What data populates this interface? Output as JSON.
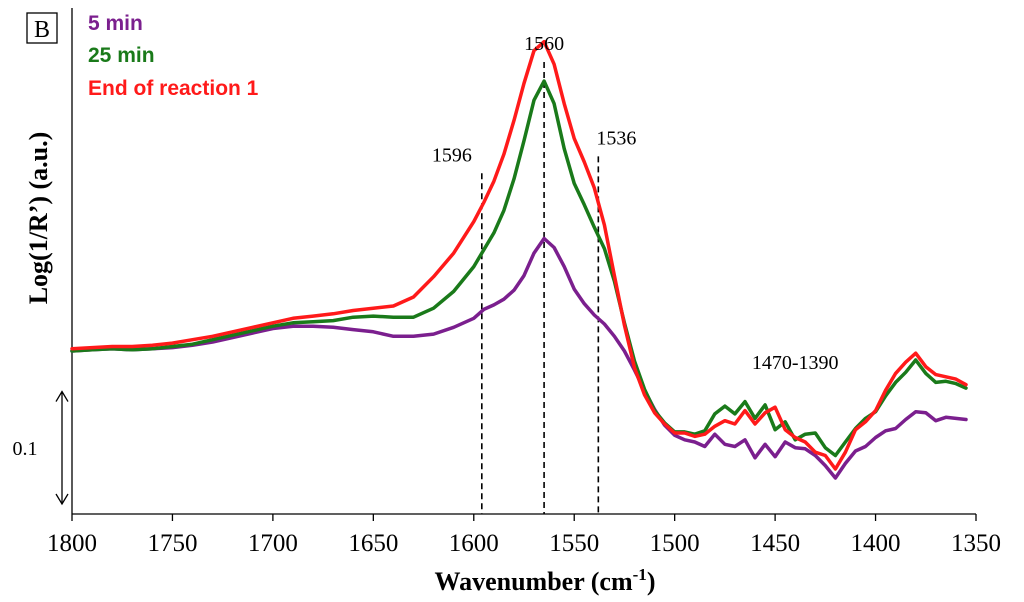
{
  "chart_data": {
    "type": "line",
    "panel_label": "B",
    "xlabel": "Wavenumber (cm",
    "xlabel_sup": "-1",
    "xlabel_close": ")",
    "ylabel": "Log(1/R’)  (a.u.)",
    "xlim": [
      1800,
      1350
    ],
    "x_reversed": true,
    "ylim": [
      0.0,
      0.45
    ],
    "x_ticks": [
      "1800",
      "1750",
      "1700",
      "1650",
      "1600",
      "1550",
      "1500",
      "1450",
      "1400",
      "1350"
    ],
    "grid": false,
    "legend_position": "top-left",
    "scale_bar": {
      "label": "0.1",
      "from": 0.0,
      "to": 0.1
    },
    "annotations": [
      {
        "text": "1596",
        "x": 1596,
        "y_top": 0.303
      },
      {
        "text": "1560",
        "x": 1565,
        "y_top": 0.402
      },
      {
        "text": "1536",
        "x": 1538,
        "y_top": 0.318
      },
      {
        "text": "1470-1390",
        "x": 1440,
        "y_text": 0.129
      }
    ],
    "series": [
      {
        "name": "5 min",
        "color": "#7B1F8E",
        "x": [
          1800,
          1790,
          1780,
          1770,
          1760,
          1750,
          1740,
          1730,
          1720,
          1710,
          1700,
          1690,
          1680,
          1670,
          1660,
          1650,
          1640,
          1630,
          1620,
          1610,
          1600,
          1595,
          1590,
          1585,
          1580,
          1575,
          1570,
          1565,
          1560,
          1555,
          1550,
          1545,
          1540,
          1535,
          1530,
          1525,
          1520,
          1515,
          1510,
          1505,
          1500,
          1495,
          1490,
          1485,
          1480,
          1475,
          1470,
          1465,
          1460,
          1455,
          1450,
          1445,
          1440,
          1435,
          1430,
          1425,
          1420,
          1415,
          1410,
          1405,
          1400,
          1395,
          1390,
          1385,
          1380,
          1375,
          1370,
          1365,
          1360,
          1355
        ],
        "y": [
          0.145,
          0.146,
          0.147,
          0.146,
          0.147,
          0.148,
          0.15,
          0.153,
          0.157,
          0.161,
          0.165,
          0.167,
          0.167,
          0.166,
          0.164,
          0.162,
          0.158,
          0.158,
          0.16,
          0.166,
          0.174,
          0.182,
          0.186,
          0.191,
          0.199,
          0.212,
          0.232,
          0.245,
          0.237,
          0.22,
          0.2,
          0.187,
          0.177,
          0.169,
          0.158,
          0.145,
          0.128,
          0.11,
          0.093,
          0.079,
          0.07,
          0.066,
          0.064,
          0.06,
          0.071,
          0.062,
          0.06,
          0.066,
          0.05,
          0.062,
          0.051,
          0.064,
          0.059,
          0.058,
          0.052,
          0.043,
          0.032,
          0.045,
          0.056,
          0.06,
          0.068,
          0.074,
          0.076,
          0.084,
          0.091,
          0.09,
          0.083,
          0.086,
          0.085,
          0.084
        ]
      },
      {
        "name": "25 min",
        "color": "#1A7A1A",
        "x": [
          1800,
          1790,
          1780,
          1770,
          1760,
          1750,
          1740,
          1730,
          1720,
          1710,
          1700,
          1690,
          1680,
          1670,
          1660,
          1650,
          1640,
          1630,
          1620,
          1610,
          1600,
          1595,
          1590,
          1585,
          1580,
          1575,
          1570,
          1565,
          1560,
          1555,
          1550,
          1545,
          1540,
          1535,
          1530,
          1525,
          1520,
          1515,
          1510,
          1505,
          1500,
          1495,
          1490,
          1485,
          1480,
          1475,
          1470,
          1465,
          1460,
          1455,
          1450,
          1445,
          1440,
          1435,
          1430,
          1425,
          1420,
          1415,
          1410,
          1405,
          1400,
          1395,
          1390,
          1385,
          1380,
          1375,
          1370,
          1365,
          1360,
          1355
        ],
        "y": [
          0.145,
          0.146,
          0.147,
          0.146,
          0.147,
          0.149,
          0.151,
          0.155,
          0.159,
          0.163,
          0.167,
          0.17,
          0.171,
          0.172,
          0.175,
          0.176,
          0.175,
          0.175,
          0.183,
          0.198,
          0.22,
          0.235,
          0.25,
          0.27,
          0.298,
          0.332,
          0.368,
          0.385,
          0.365,
          0.325,
          0.294,
          0.275,
          0.255,
          0.236,
          0.207,
          0.17,
          0.136,
          0.111,
          0.092,
          0.081,
          0.073,
          0.073,
          0.071,
          0.074,
          0.089,
          0.096,
          0.089,
          0.1,
          0.085,
          0.097,
          0.075,
          0.082,
          0.066,
          0.071,
          0.072,
          0.059,
          0.052,
          0.064,
          0.076,
          0.085,
          0.091,
          0.105,
          0.117,
          0.126,
          0.137,
          0.125,
          0.117,
          0.118,
          0.116,
          0.112
        ]
      },
      {
        "name": "End of reaction 1",
        "color": "#FF1A1A",
        "x": [
          1800,
          1790,
          1780,
          1770,
          1760,
          1750,
          1740,
          1730,
          1720,
          1710,
          1700,
          1690,
          1680,
          1670,
          1660,
          1650,
          1640,
          1630,
          1620,
          1610,
          1600,
          1595,
          1590,
          1585,
          1580,
          1575,
          1570,
          1565,
          1560,
          1555,
          1550,
          1545,
          1540,
          1535,
          1530,
          1525,
          1520,
          1515,
          1510,
          1505,
          1500,
          1495,
          1490,
          1485,
          1480,
          1475,
          1470,
          1465,
          1460,
          1455,
          1450,
          1445,
          1440,
          1435,
          1430,
          1425,
          1420,
          1415,
          1410,
          1405,
          1400,
          1395,
          1390,
          1385,
          1380,
          1375,
          1370,
          1365,
          1360,
          1355
        ],
        "y": [
          0.147,
          0.148,
          0.149,
          0.149,
          0.15,
          0.152,
          0.155,
          0.158,
          0.162,
          0.166,
          0.17,
          0.174,
          0.176,
          0.178,
          0.181,
          0.183,
          0.185,
          0.193,
          0.211,
          0.232,
          0.26,
          0.277,
          0.296,
          0.32,
          0.35,
          0.383,
          0.412,
          0.42,
          0.4,
          0.365,
          0.334,
          0.313,
          0.29,
          0.257,
          0.212,
          0.168,
          0.13,
          0.106,
          0.09,
          0.08,
          0.072,
          0.072,
          0.069,
          0.071,
          0.078,
          0.083,
          0.08,
          0.092,
          0.08,
          0.09,
          0.095,
          0.075,
          0.068,
          0.064,
          0.055,
          0.052,
          0.04,
          0.055,
          0.075,
          0.082,
          0.092,
          0.11,
          0.125,
          0.135,
          0.143,
          0.131,
          0.124,
          0.122,
          0.12,
          0.115
        ]
      }
    ]
  }
}
